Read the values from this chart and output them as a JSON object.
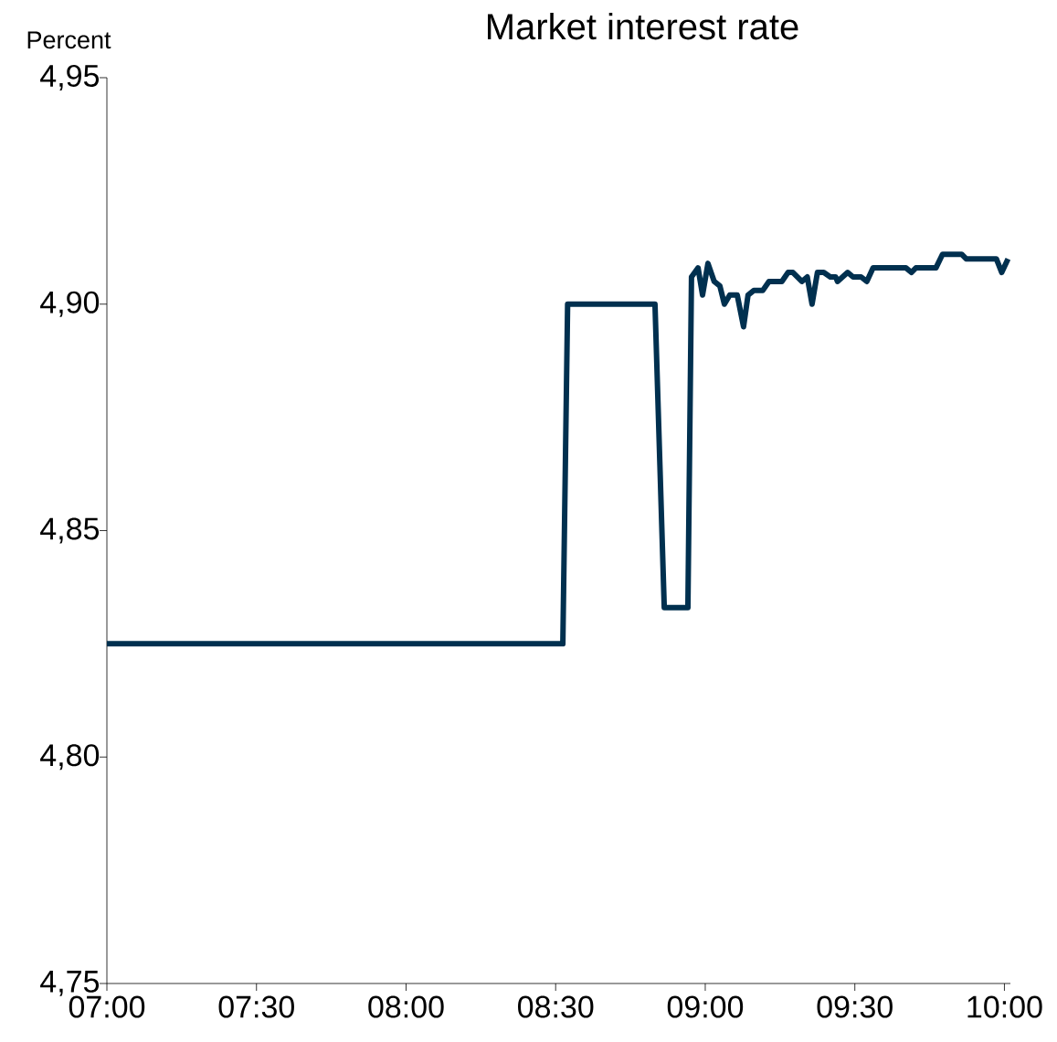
{
  "chart_data": {
    "type": "line",
    "title": "Market interest rate",
    "ylabel": "Percent",
    "color": "#00304f",
    "x": [
      7.0,
      8.524,
      8.54,
      8.832,
      8.863,
      8.942,
      8.954,
      8.976,
      8.991,
      9.009,
      9.03,
      9.049,
      9.064,
      9.082,
      9.107,
      9.128,
      9.143,
      9.162,
      9.192,
      9.213,
      9.256,
      9.277,
      9.293,
      9.323,
      9.341,
      9.357,
      9.375,
      9.396,
      9.418,
      9.436,
      9.442,
      9.476,
      9.494,
      9.521,
      9.54,
      9.561,
      9.671,
      9.689,
      9.704,
      9.771,
      9.793,
      9.857,
      9.872,
      9.973,
      9.991,
      10.012
    ],
    "values": [
      4.825,
      4.825,
      4.9,
      4.9,
      4.833,
      4.833,
      4.906,
      4.908,
      4.902,
      4.909,
      4.905,
      4.904,
      4.9,
      4.902,
      4.902,
      4.895,
      4.902,
      4.903,
      4.903,
      4.905,
      4.905,
      4.907,
      4.907,
      4.905,
      4.906,
      4.9,
      4.907,
      4.907,
      4.906,
      4.906,
      4.905,
      4.907,
      4.906,
      4.906,
      4.905,
      4.908,
      4.908,
      4.907,
      4.908,
      4.908,
      4.911,
      4.911,
      4.91,
      4.91,
      4.907,
      4.91
    ],
    "xlim": [
      7,
      10.02
    ],
    "ylim": [
      4.75,
      4.95
    ],
    "xticks": [
      {
        "value": 7,
        "label": "07:00"
      },
      {
        "value": 7.5,
        "label": "07:30"
      },
      {
        "value": 8,
        "label": "08:00"
      },
      {
        "value": 8.5,
        "label": "08:30"
      },
      {
        "value": 9,
        "label": "09:00"
      },
      {
        "value": 9.5,
        "label": "09:30"
      },
      {
        "value": 10,
        "label": "10:00"
      }
    ],
    "yticks": [
      {
        "value": 4.75,
        "label": "4,75"
      },
      {
        "value": 4.8,
        "label": "4,80"
      },
      {
        "value": 4.85,
        "label": "4,85"
      },
      {
        "value": 4.9,
        "label": "4,90"
      },
      {
        "value": 4.95,
        "label": "4,95"
      }
    ]
  }
}
